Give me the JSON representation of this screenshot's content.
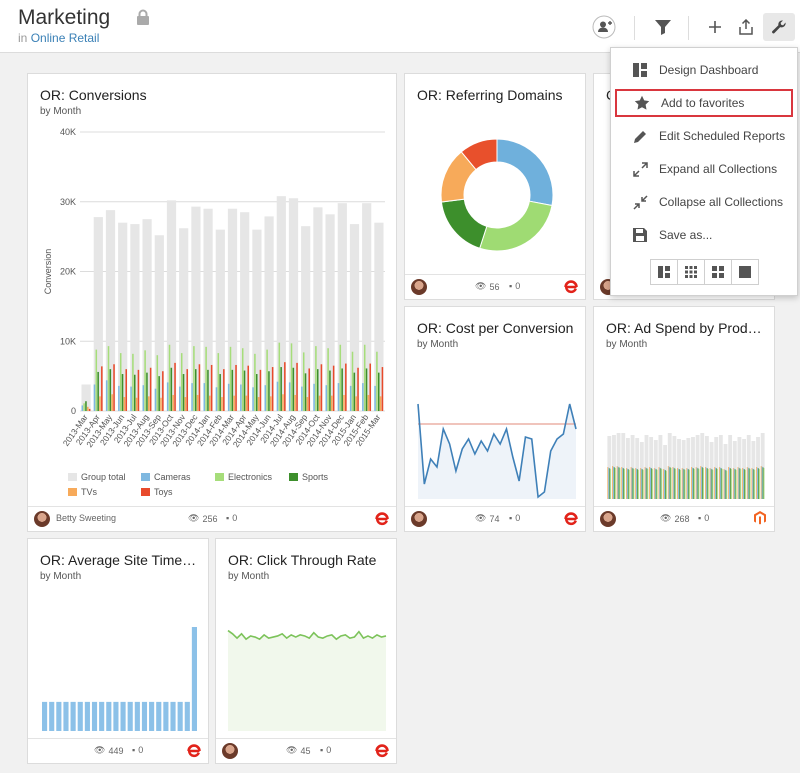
{
  "header": {
    "title": "Marketing",
    "in_label": "in",
    "collection": "Online Retail"
  },
  "menu": {
    "items": [
      {
        "label": "Design Dashboard",
        "icon": "design-dashboard-icon"
      },
      {
        "label": "Add to favorites",
        "icon": "star-icon"
      },
      {
        "label": "Edit Scheduled Reports",
        "icon": "pencil-icon"
      },
      {
        "label": "Expand all Collections",
        "icon": "expand-icon"
      },
      {
        "label": "Collapse all Collections",
        "icon": "collapse-icon"
      },
      {
        "label": "Save as...",
        "icon": "save-icon"
      }
    ],
    "highlighted": 1
  },
  "cards": {
    "conversions": {
      "title": "OR: Conversions",
      "sub": "by Month",
      "author": "Betty Sweeting",
      "views": "256",
      "comments": "0"
    },
    "referring": {
      "title": "OR: Referring Domains",
      "views": "56",
      "comments": "0"
    },
    "cost": {
      "title": "OR: Cost per Conversion",
      "sub": "by Month",
      "views": "74",
      "comments": "0"
    },
    "adspend": {
      "title": "OR: Ad Spend by Product ...",
      "sub": "by Month",
      "views": "268",
      "comments": "0"
    },
    "sitetime": {
      "title": "OR: Average Site Time in ...",
      "sub": "by Month",
      "views": "449",
      "comments": "0"
    },
    "ctr": {
      "title": "OR: Click Through Rate",
      "sub": "by Month",
      "views": "45",
      "comments": "0"
    },
    "partial": {
      "title": "C"
    }
  },
  "chart_data": [
    {
      "type": "bar",
      "title": "OR: Conversions",
      "subtitle": "by Month",
      "ylabel": "Conversion",
      "ylim": [
        0,
        40000
      ],
      "yticks": [
        "0",
        "10K",
        "20K",
        "30K",
        "40K"
      ],
      "categories": [
        "2013-Mar",
        "2013-Apr",
        "2013-May",
        "2013-Jun",
        "2013-Jul",
        "2013-Aug",
        "2013-Sep",
        "2013-Oct",
        "2013-Nov",
        "2013-Dec",
        "2014-Jan",
        "2014-Feb",
        "2014-Mar",
        "2014-Apr",
        "2014-May",
        "2014-Jun",
        "2014-Jul",
        "2014-Aug",
        "2014-Sep",
        "2014-Oct",
        "2014-Nov",
        "2014-Dec",
        "2015-Jan",
        "2015-Feb",
        "2015-Mar"
      ],
      "x_tick_labels": [
        "2013-Mar",
        "2013-Apr",
        "2013-May",
        "2013-Jun",
        "2013-Jul",
        "2013-Aug",
        "2013-Sep",
        "2013-Oct",
        "2013-Nov",
        "2013-Dec",
        "2014-Jan",
        "2014-Feb",
        "2014-Mar",
        "2014-Apr",
        "2014-May",
        "2014-Jun",
        "2014-Jul",
        "2014-Aug",
        "2014-Sep",
        "2014-Oct",
        "2014-Nov",
        "2014-Dec",
        "2015-Jan",
        "2015-Feb",
        "2015-Mar"
      ],
      "series": [
        {
          "name": "Group total",
          "color": "#e6e6e6",
          "values": [
            3800,
            27800,
            28800,
            27000,
            26800,
            27500,
            25200,
            30200,
            26200,
            29300,
            29000,
            26000,
            29000,
            28500,
            26000,
            27900,
            30800,
            30500,
            26500,
            29200,
            28200,
            29800,
            26800,
            29800,
            27000
          ]
        },
        {
          "name": "Cameras",
          "color": "#7fb8e0",
          "values": [
            800,
            3800,
            4400,
            3600,
            3500,
            3700,
            3200,
            4100,
            3500,
            4000,
            4000,
            3400,
            3900,
            3800,
            3400,
            3700,
            4200,
            4100,
            3500,
            3900,
            3700,
            4000,
            3600,
            4000,
            3600
          ]
        },
        {
          "name": "Electronics",
          "color": "#a6dd7a",
          "values": [
            1100,
            8800,
            9300,
            8300,
            8200,
            8700,
            8000,
            9500,
            8300,
            9300,
            9200,
            8300,
            9200,
            9000,
            8200,
            8800,
            9800,
            9700,
            8400,
            9300,
            9000,
            9500,
            8500,
            9500,
            8500
          ]
        },
        {
          "name": "Sports",
          "color": "#3d8f2c",
          "values": [
            1400,
            5600,
            6000,
            5300,
            5200,
            5500,
            5000,
            6200,
            5300,
            6000,
            5900,
            5300,
            5900,
            5800,
            5300,
            5700,
            6300,
            6200,
            5400,
            6000,
            5800,
            6100,
            5500,
            6100,
            5500
          ]
        },
        {
          "name": "TVs",
          "color": "#f7aa5a",
          "values": [
            600,
            2100,
            2400,
            2000,
            1900,
            2100,
            1900,
            2300,
            2000,
            2300,
            2200,
            2000,
            2200,
            2200,
            2000,
            2100,
            2400,
            2300,
            2000,
            2200,
            2200,
            2300,
            2100,
            2300,
            2100
          ]
        },
        {
          "name": "Toys",
          "color": "#e84a2c",
          "values": [
            300,
            6400,
            6700,
            6000,
            5900,
            6200,
            5700,
            6900,
            6000,
            6700,
            6600,
            6000,
            6600,
            6500,
            5900,
            6300,
            7000,
            6900,
            6100,
            6700,
            6500,
            6800,
            6200,
            6800,
            6300
          ]
        }
      ]
    },
    {
      "type": "pie",
      "title": "OR: Referring Domains",
      "slices": [
        {
          "value": 28,
          "color": "#6fb0dc"
        },
        {
          "value": 27,
          "color": "#9fdb73"
        },
        {
          "value": 18,
          "color": "#3d8f2c"
        },
        {
          "value": 16,
          "color": "#f7aa5a"
        },
        {
          "value": 11,
          "color": "#e8502c"
        }
      ]
    },
    {
      "type": "area",
      "title": "OR: Cost per Conversion",
      "subtitle": "by Month",
      "reference_line_fraction": 0.25,
      "values_fraction": [
        0.05,
        0.85,
        0.6,
        0.68,
        0.3,
        0.45,
        0.72,
        0.5,
        0.4,
        0.55,
        0.42,
        0.52,
        0.35,
        0.45,
        0.3,
        0.58,
        0.82,
        0.38,
        0.4,
        0.98,
        0.93,
        0.52,
        0.4,
        0.35,
        0.05,
        0.3
      ]
    },
    {
      "type": "bar",
      "title": "OR: Ad Spend by Product ...",
      "subtitle": "by Month",
      "series": [
        {
          "name": "",
          "color": "#e6e6e6",
          "values_fraction": [
            0.63,
            0.64,
            0.66,
            0.66,
            0.61,
            0.64,
            0.61,
            0.57,
            0.64,
            0.62,
            0.59,
            0.64,
            0.54,
            0.66,
            0.63,
            0.6,
            0.59,
            0.61,
            0.62,
            0.64,
            0.66,
            0.63,
            0.57,
            0.62,
            0.64,
            0.55,
            0.64,
            0.58,
            0.62,
            0.6,
            0.64,
            0.58,
            0.62,
            0.66
          ]
        },
        {
          "name": "",
          "color": "#f7aa5a",
          "values_fraction": [
            0.32,
            0.33,
            0.33,
            0.32,
            0.31,
            0.32,
            0.31,
            0.31,
            0.32,
            0.32,
            0.31,
            0.32,
            0.3,
            0.33,
            0.32,
            0.31,
            0.31,
            0.31,
            0.32,
            0.32,
            0.33,
            0.32,
            0.31,
            0.32,
            0.32,
            0.3,
            0.32,
            0.31,
            0.32,
            0.31,
            0.32,
            0.31,
            0.32,
            0.33
          ]
        }
      ]
    },
    {
      "type": "bar",
      "title": "OR: Average Site Time in ...",
      "subtitle": "by Month",
      "series": [
        {
          "name": "",
          "color": "#8cc1e8",
          "values_fraction": [
            0.28,
            0.28,
            0.28,
            0.28,
            0.28,
            0.28,
            0.28,
            0.28,
            0.28,
            0.28,
            0.28,
            0.28,
            0.28,
            0.28,
            0.28,
            0.28,
            0.28,
            0.28,
            0.28,
            0.28,
            0.28,
            1.0
          ]
        }
      ]
    },
    {
      "type": "area",
      "title": "OR: Click Through Rate",
      "subtitle": "by Month",
      "values_fraction": [
        0.93,
        0.9,
        0.86,
        0.9,
        0.85,
        0.88,
        0.87,
        0.85,
        0.89,
        0.86,
        0.87,
        0.88,
        0.9,
        0.86,
        0.89,
        0.87,
        0.89,
        0.88,
        0.86,
        0.91,
        0.87,
        0.86,
        0.88,
        0.89,
        0.85,
        0.88,
        0.89,
        0.86,
        0.87,
        0.92,
        0.86,
        0.88,
        0.86,
        0.89,
        0.87,
        0.88
      ]
    }
  ],
  "colors": {
    "accent_link": "#3a80b6",
    "highlight_border": "#d9363e",
    "logo_e": "#e2231a",
    "logo_magento": "#f26322"
  }
}
